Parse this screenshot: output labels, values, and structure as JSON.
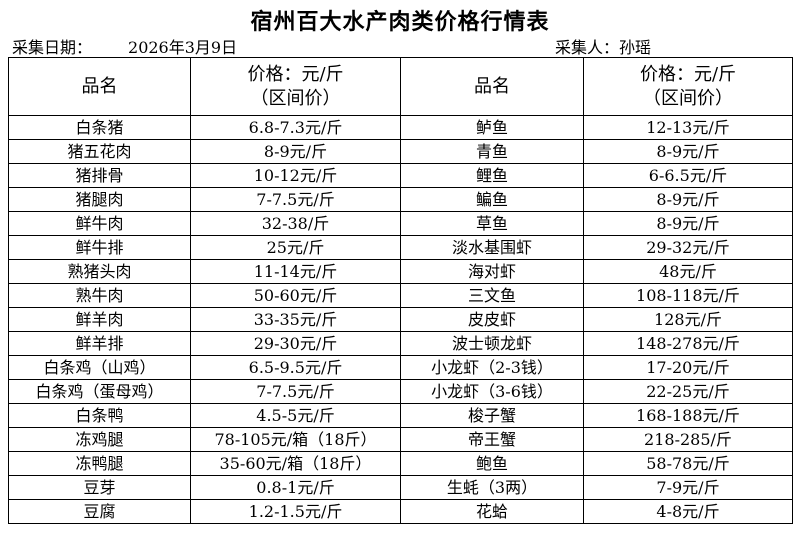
{
  "title": "宿州百大水产肉类价格行情表",
  "date_label": "采集日期：",
  "date_value": "2026年3月9日",
  "collector_label": "采集人：",
  "collector_value": "孙瑶",
  "headers": {
    "name": "品名",
    "price_line1": "价格：元/斤",
    "price_line2": "（区间价）"
  },
  "rows": [
    [
      "白条猪",
      "6.8-7.3元/斤",
      "鲈鱼",
      "12-13元/斤"
    ],
    [
      "猪五花肉",
      "8-9元/斤",
      "青鱼",
      "8-9元/斤"
    ],
    [
      "猪排骨",
      "10-12元/斤",
      "鲤鱼",
      "6-6.5元/斤"
    ],
    [
      "猪腿肉",
      "7-7.5元/斤",
      "鳊鱼",
      "8-9元/斤"
    ],
    [
      "鲜牛肉",
      "32-38/斤",
      "草鱼",
      "8-9元/斤"
    ],
    [
      "鲜牛排",
      "25元/斤",
      "淡水基围虾",
      "29-32元/斤"
    ],
    [
      "熟猪头肉",
      "11-14元/斤",
      "海对虾",
      "48元/斤"
    ],
    [
      "熟牛肉",
      "50-60元/斤",
      "三文鱼",
      "108-118元/斤"
    ],
    [
      "鲜羊肉",
      "33-35元/斤",
      "皮皮虾",
      "128元/斤"
    ],
    [
      "鲜羊排",
      "29-30元/斤",
      "波士顿龙虾",
      "148-278元/斤"
    ],
    [
      "白条鸡（山鸡）",
      "6.5-9.5元/斤",
      "小龙虾（2-3钱）",
      "17-20元/斤"
    ],
    [
      "白条鸡（蛋母鸡）",
      "7-7.5元/斤",
      "小龙虾（3-6钱）",
      "22-25元/斤"
    ],
    [
      "白条鸭",
      "4.5-5元/斤",
      "梭子蟹",
      "168-188元/斤"
    ],
    [
      "冻鸡腿",
      "78-105元/箱（18斤）",
      "帝王蟹",
      "218-285/斤"
    ],
    [
      "冻鸭腿",
      "35-60元/箱（18斤）",
      "鲍鱼",
      "58-78元/斤"
    ],
    [
      "豆芽",
      "0.8-1元/斤",
      "生蚝（3两）",
      "7-9元/斤"
    ],
    [
      "豆腐",
      "1.2-1.5元/斤",
      "花蛤",
      "4-8元/斤"
    ]
  ]
}
